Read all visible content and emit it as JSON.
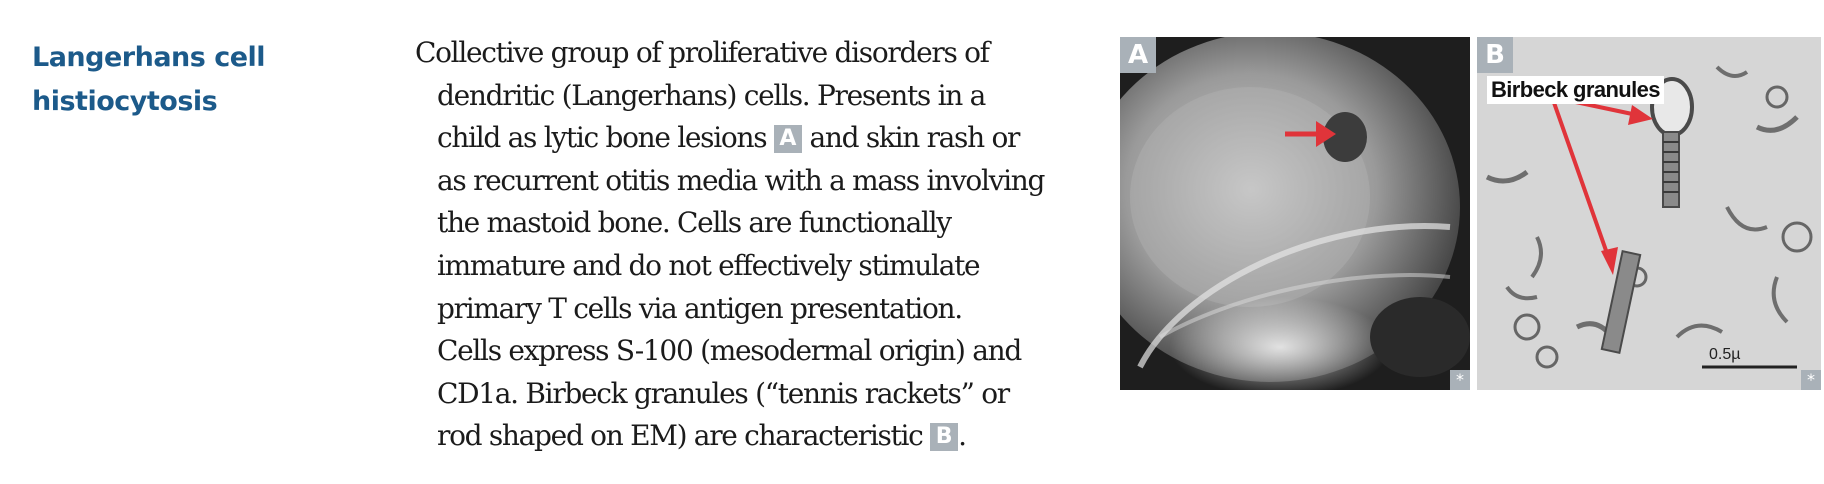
{
  "entry": {
    "heading_lines": [
      "Langerhans cell",
      "histiocytosis"
    ],
    "body_lines": [
      "Collective group of proliferative disorders of",
      "dendritic (Langerhans) cells. Presents in a",
      "child as lytic bone lesions",
      "and skin rash or",
      "as recurrent otitis media with a mass involving",
      "the mastoid bone. Cells are functionally",
      "immature and do not effectively stimulate",
      "primary T cells via antigen presentation.",
      "Cells express S-100 (mesodermal origin) and",
      "CD1a. Birbeck granules (“tennis rackets” or",
      "rod shaped on EM) are characteristic",
      "."
    ],
    "ref_a": "A",
    "ref_b": "B"
  },
  "figures": {
    "panel_a": {
      "label": "A",
      "corner_mark": "*"
    },
    "panel_b": {
      "label": "B",
      "callout": "Birbeck granules",
      "scale_text": "0.5µ",
      "corner_mark": "*"
    }
  },
  "colors": {
    "heading": "#1c5a8a",
    "badge": "#a9b1b8",
    "arrow": "#e0343a"
  }
}
